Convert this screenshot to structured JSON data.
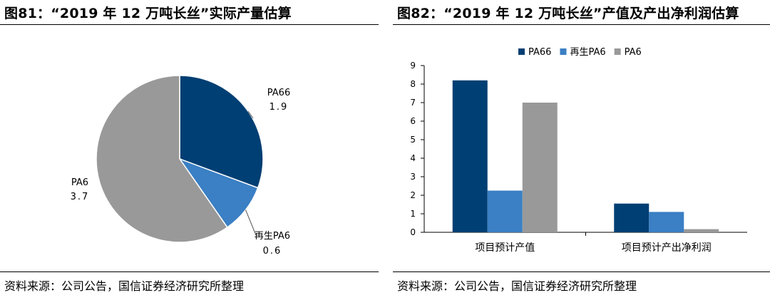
{
  "left": {
    "title": "图81：“2019 年 12 万吨长丝”实际产量估算",
    "source": "资料来源：公司公告，国信证券经济研究所整理"
  },
  "right": {
    "title": "图82：“2019 年 12 万吨长丝”产值及产出净利润估算",
    "source": "资料来源：公司公告，国信证券经济研究所整理"
  },
  "colors": {
    "PA66": "#003f73",
    "再生PA6": "#3b7fc4",
    "PA6": "#999999"
  },
  "chart_data": [
    {
      "type": "pie",
      "slices": [
        {
          "label": "PA66",
          "value": 1.9,
          "value_label": "1.9"
        },
        {
          "label": "再生PA6",
          "value": 0.6,
          "value_label": "0.6"
        },
        {
          "label": "PA6",
          "value": 3.7,
          "value_label": "3.7"
        }
      ]
    },
    {
      "type": "bar",
      "categories": [
        "项目预计产值",
        "项目预计产出净利润"
      ],
      "series": [
        {
          "name": "PA66",
          "values": [
            8.2,
            1.55
          ]
        },
        {
          "name": "再生PA6",
          "values": [
            2.25,
            1.1
          ]
        },
        {
          "name": "PA6",
          "values": [
            7.0,
            0.17
          ]
        }
      ],
      "ylim": [
        0,
        9
      ],
      "yticks": [
        "0",
        "1",
        "2",
        "3",
        "4",
        "5",
        "6",
        "7",
        "8",
        "9"
      ],
      "legend": "top"
    }
  ]
}
